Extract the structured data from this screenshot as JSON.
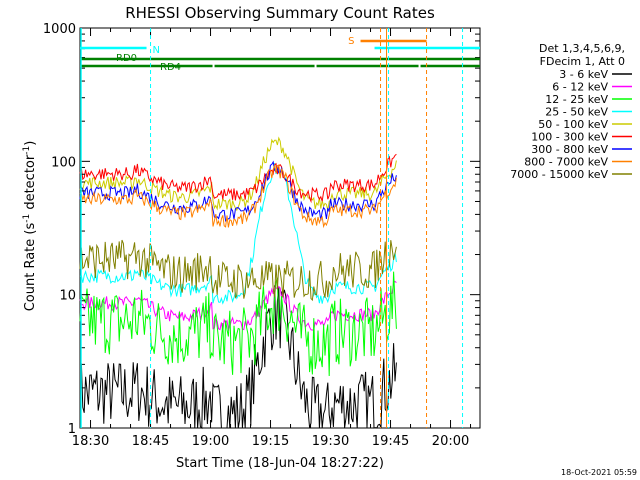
{
  "chart_data": {
    "type": "line",
    "title": "RHESSI Observing Summary Count Rates",
    "xlabel": "Start Time (18-Jun-04 18:27:22)",
    "ylabel_main": "Count Rate (s",
    "ylabel_sup1": "-1",
    "ylabel_mid": " detector",
    "ylabel_sup2": "-1",
    "ylabel_end": ")",
    "yscale": "log",
    "ylim": [
      1,
      1000
    ],
    "x_tick_labels": [
      "18:30",
      "18:45",
      "19:00",
      "19:15",
      "19:30",
      "19:45",
      "20:00"
    ],
    "y_tick_labels": [
      "1",
      "10",
      "100",
      "1000"
    ],
    "timestamp": "18-Oct-2021 05:59",
    "legend_header": [
      "Det 1,3,4,5,6,9,",
      "FDecim 1, Att 0"
    ],
    "legend_placement": "right",
    "flags": [
      {
        "label": "N",
        "color": "#00ffff"
      },
      {
        "label": "RD0",
        "color": "#008000"
      },
      {
        "label": "RD4",
        "color": "#008000"
      },
      {
        "label": "S",
        "color": "#ff8000"
      }
    ],
    "series": [
      {
        "name": "3 - 6 keV",
        "color": "#000000",
        "quiet": 1.6,
        "peak": 7.5
      },
      {
        "name": "6 - 12 keV",
        "color": "#ff00ff",
        "quiet": 7.5,
        "peak": 12
      },
      {
        "name": "12 - 25 keV",
        "color": "#00ff00",
        "quiet": 5.5,
        "peak": 10
      },
      {
        "name": "25 - 50 keV",
        "color": "#00ffff",
        "quiet": 12,
        "peak": 90
      },
      {
        "name": "50 - 100 keV",
        "color": "#cccc00",
        "quiet": 60,
        "peak": 150
      },
      {
        "name": "100 - 300 keV",
        "color": "#ff0000",
        "quiet": 70,
        "peak": 100
      },
      {
        "name": "300 - 800 keV",
        "color": "#0000ff",
        "quiet": 50,
        "peak": 100
      },
      {
        "name": "800 - 7000 keV",
        "color": "#ff8000",
        "quiet": 45,
        "peak": 95
      },
      {
        "name": "7000 - 15000 keV",
        "color": "#808000",
        "quiet": 16,
        "peak": 16
      }
    ]
  }
}
